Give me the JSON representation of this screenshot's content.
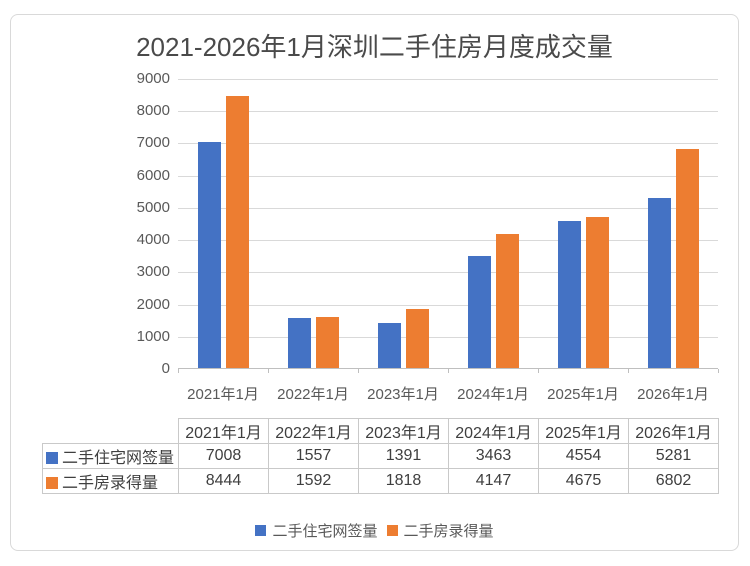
{
  "title": "2021-2026年1月深圳二手住房月度成交量",
  "chart_data": {
    "type": "bar",
    "title": "2021-2026年1月深圳二手住房月度成交量",
    "categories": [
      "2021年1月",
      "2022年1月",
      "2023年1月",
      "2024年1月",
      "2025年1月",
      "2026年1月"
    ],
    "series": [
      {
        "name": "二手住宅网签量",
        "key": "online-signed",
        "color": "#4472C4",
        "values": [
          7008,
          1557,
          1391,
          3463,
          4554,
          5281
        ]
      },
      {
        "name": "二手房录得量",
        "key": "recorded",
        "color": "#ED7D31",
        "values": [
          8444,
          1592,
          1818,
          4147,
          4675,
          6802
        ]
      }
    ],
    "ylim": [
      0,
      9000
    ],
    "ytick_step": 1000,
    "grid": true,
    "legend_position": "bottom"
  },
  "data_table": {
    "corner_label": "",
    "columns": [
      "2021年1月",
      "2022年1月",
      "2023年1月",
      "2024年1月",
      "2025年1月",
      "2026年1月"
    ],
    "rows": [
      {
        "label": "二手住宅网签量",
        "swatch_color": "#4472C4",
        "values": [
          "7008",
          "1557",
          "1391",
          "3463",
          "4554",
          "5281"
        ]
      },
      {
        "label": "二手房录得量",
        "swatch_color": "#ED7D31",
        "values": [
          "8444",
          "1592",
          "1818",
          "4147",
          "4675",
          "6802"
        ]
      }
    ]
  },
  "legend": {
    "items": [
      {
        "label": "二手住宅网签量",
        "color": "#4472C4"
      },
      {
        "label": "二手房录得量",
        "color": "#ED7D31"
      }
    ]
  },
  "colors": {
    "series1": "#4472C4",
    "series2": "#ED7D31",
    "gridline": "#D9D9D9",
    "axis_line": "#BFBFBF",
    "axis_text": "#595959",
    "title_text": "#4A4A4A",
    "table_text": "#3F3F3F",
    "table_border": "#C9C9C9",
    "card_border": "#D9D9D9",
    "background": "#FFFFFF"
  }
}
